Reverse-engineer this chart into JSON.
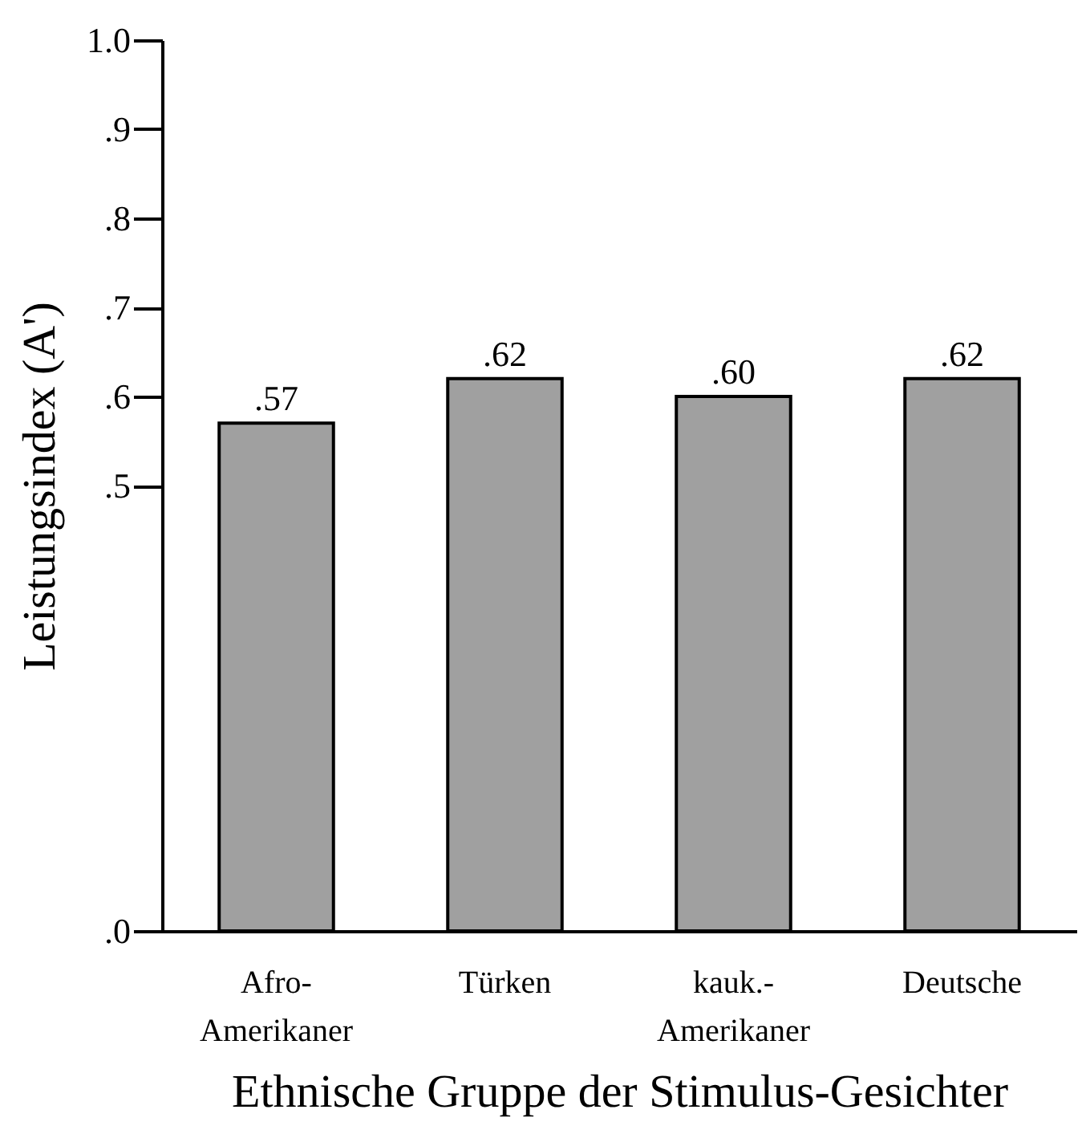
{
  "chart_data": {
    "type": "bar",
    "xlabel": "Ethnische Gruppe der Stimulus-Gesichter",
    "ylabel": "Leistungsindex (A')",
    "categories": [
      "Afro-\nAmerikaner",
      "Türken",
      "kauk.-\nAmerikaner",
      "Deutsche"
    ],
    "values": [
      0.57,
      0.62,
      0.6,
      0.62
    ],
    "value_labels": [
      ".57",
      ".62",
      ".60",
      ".62"
    ],
    "color": "#a0a0a0",
    "ylim": [
      0,
      1.0
    ],
    "yticks": [
      {
        "value": 0,
        "label": ".0"
      },
      {
        "value": 0.5,
        "label": ".5"
      },
      {
        "value": 0.6,
        "label": ".6"
      },
      {
        "value": 0.7,
        "label": ".7"
      },
      {
        "value": 0.8,
        "label": ".8"
      },
      {
        "value": 0.9,
        "label": ".9"
      },
      {
        "value": 1.0,
        "label": "1.0"
      }
    ],
    "grid": false
  }
}
